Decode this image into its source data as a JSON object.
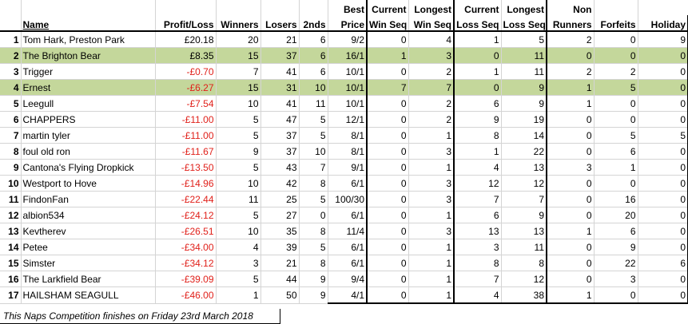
{
  "headers": {
    "row1": {
      "best": "Best",
      "current_win": "Current",
      "longest_win": "Longest",
      "current_loss": "Current",
      "longest_loss": "Longest",
      "non": "Non"
    },
    "row2": {
      "name": "Name",
      "profit": "Profit/Loss",
      "winners": "Winners",
      "losers": "Losers",
      "seconds": "2nds",
      "best": "Price",
      "current_win": "Win Seq",
      "longest_win": "Win Seq",
      "current_loss": "Loss Seq",
      "longest_loss": "Loss Seq",
      "non": "Runners",
      "forfeits": "Forfeits",
      "holiday": "Holiday"
    }
  },
  "rows": [
    {
      "rank": "1",
      "name": "Tom Hark, Preston Park",
      "profit": "£20.18",
      "winners": "20",
      "losers": "21",
      "seconds": "6",
      "best": "9/2",
      "cws": "0",
      "lws": "4",
      "cls": "1",
      "lls": "5",
      "nr": "2",
      "ff": "0",
      "hol": "9"
    },
    {
      "rank": "2",
      "name": "The Brighton Bear",
      "profit": "£8.35",
      "winners": "15",
      "losers": "37",
      "seconds": "6",
      "best": "16/1",
      "cws": "1",
      "lws": "3",
      "cls": "0",
      "lls": "11",
      "nr": "0",
      "ff": "0",
      "hol": "0"
    },
    {
      "rank": "3",
      "name": "Trigger",
      "profit": "-£0.70",
      "winners": "7",
      "losers": "41",
      "seconds": "6",
      "best": "10/1",
      "cws": "0",
      "lws": "2",
      "cls": "1",
      "lls": "11",
      "nr": "2",
      "ff": "2",
      "hol": "0"
    },
    {
      "rank": "4",
      "name": "Ernest",
      "profit": "-£6.27",
      "winners": "15",
      "losers": "31",
      "seconds": "10",
      "best": "10/1",
      "cws": "7",
      "lws": "7",
      "cls": "0",
      "lls": "9",
      "nr": "1",
      "ff": "5",
      "hol": "0"
    },
    {
      "rank": "5",
      "name": "Leegull",
      "profit": "-£7.54",
      "winners": "10",
      "losers": "41",
      "seconds": "11",
      "best": "10/1",
      "cws": "0",
      "lws": "2",
      "cls": "6",
      "lls": "9",
      "nr": "1",
      "ff": "0",
      "hol": "0"
    },
    {
      "rank": "6",
      "name": "CHAPPERS",
      "profit": "-£11.00",
      "winners": "5",
      "losers": "47",
      "seconds": "5",
      "best": "12/1",
      "cws": "0",
      "lws": "2",
      "cls": "9",
      "lls": "19",
      "nr": "0",
      "ff": "0",
      "hol": "0"
    },
    {
      "rank": "7",
      "name": "martin tyler",
      "profit": "-£11.00",
      "winners": "5",
      "losers": "37",
      "seconds": "5",
      "best": "8/1",
      "cws": "0",
      "lws": "1",
      "cls": "8",
      "lls": "14",
      "nr": "0",
      "ff": "5",
      "hol": "5"
    },
    {
      "rank": "8",
      "name": "foul old ron",
      "profit": "-£11.67",
      "winners": "9",
      "losers": "37",
      "seconds": "10",
      "best": "8/1",
      "cws": "0",
      "lws": "3",
      "cls": "1",
      "lls": "22",
      "nr": "0",
      "ff": "6",
      "hol": "0"
    },
    {
      "rank": "9",
      "name": "Cantona's Flying Dropkick",
      "profit": "-£13.50",
      "winners": "5",
      "losers": "43",
      "seconds": "7",
      "best": "9/1",
      "cws": "0",
      "lws": "1",
      "cls": "4",
      "lls": "13",
      "nr": "3",
      "ff": "1",
      "hol": "0"
    },
    {
      "rank": "10",
      "name": "Westport to Hove",
      "profit": "-£14.96",
      "winners": "10",
      "losers": "42",
      "seconds": "8",
      "best": "6/1",
      "cws": "0",
      "lws": "3",
      "cls": "12",
      "lls": "12",
      "nr": "0",
      "ff": "0",
      "hol": "0"
    },
    {
      "rank": "11",
      "name": "FindonFan",
      "profit": "-£22.44",
      "winners": "11",
      "losers": "25",
      "seconds": "5",
      "best": "100/30",
      "cws": "0",
      "lws": "3",
      "cls": "7",
      "lls": "7",
      "nr": "0",
      "ff": "16",
      "hol": "0"
    },
    {
      "rank": "12",
      "name": "albion534",
      "profit": "-£24.12",
      "winners": "5",
      "losers": "27",
      "seconds": "0",
      "best": "6/1",
      "cws": "0",
      "lws": "1",
      "cls": "6",
      "lls": "9",
      "nr": "0",
      "ff": "20",
      "hol": "0"
    },
    {
      "rank": "13",
      "name": "Kevtherev",
      "profit": "-£26.51",
      "winners": "10",
      "losers": "35",
      "seconds": "8",
      "best": "11/4",
      "cws": "0",
      "lws": "3",
      "cls": "13",
      "lls": "13",
      "nr": "1",
      "ff": "6",
      "hol": "0"
    },
    {
      "rank": "14",
      "name": "Petee",
      "profit": "-£34.00",
      "winners": "4",
      "losers": "39",
      "seconds": "5",
      "best": "6/1",
      "cws": "0",
      "lws": "1",
      "cls": "3",
      "lls": "11",
      "nr": "0",
      "ff": "9",
      "hol": "0"
    },
    {
      "rank": "15",
      "name": "Simster",
      "profit": "-£34.12",
      "winners": "3",
      "losers": "21",
      "seconds": "8",
      "best": "6/1",
      "cws": "0",
      "lws": "1",
      "cls": "8",
      "lls": "8",
      "nr": "0",
      "ff": "22",
      "hol": "6"
    },
    {
      "rank": "16",
      "name": "The Larkfield Bear",
      "profit": "-£39.09",
      "winners": "5",
      "losers": "44",
      "seconds": "9",
      "best": "9/4",
      "cws": "0",
      "lws": "1",
      "cls": "7",
      "lls": "12",
      "nr": "0",
      "ff": "3",
      "hol": "0"
    },
    {
      "rank": "17",
      "name": "HAILSHAM SEAGULL",
      "profit": "-£46.00",
      "winners": "1",
      "losers": "50",
      "seconds": "9",
      "best": "4/1",
      "cws": "0",
      "lws": "1",
      "cls": "4",
      "lls": "38",
      "nr": "1",
      "ff": "0",
      "hol": "0"
    }
  ],
  "highlight_color": "#c4d79b",
  "negative_color": "#e0201a",
  "footer": "This Naps Competition finishes on Friday 23rd March 2018"
}
